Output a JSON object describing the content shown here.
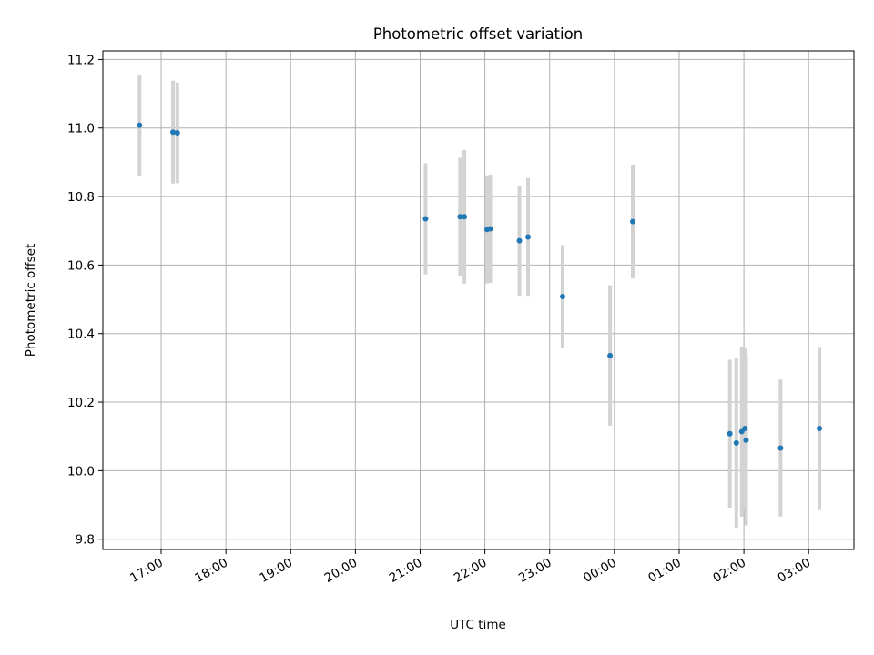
{
  "chart_data": {
    "type": "scatter",
    "title": "Photometric offset variation",
    "xlabel": "UTC time",
    "ylabel": "Photometric offset",
    "grid": true,
    "x_ticks": [
      "17:00",
      "18:00",
      "19:00",
      "20:00",
      "21:00",
      "22:00",
      "23:00",
      "00:00",
      "01:00",
      "02:00",
      "03:00"
    ],
    "x_range_hours": [
      16.1,
      27.7
    ],
    "y_ticks": [
      "9.8",
      "10.0",
      "10.2",
      "10.4",
      "10.6",
      "10.8",
      "11.0",
      "11.2"
    ],
    "ylim": [
      9.77,
      11.225
    ],
    "colors": {
      "points": "#1f77b4",
      "errorbars": "#d3d3d3",
      "grid": "#b0b0b0"
    },
    "series": [
      {
        "name": "",
        "points": [
          {
            "t": "16:40",
            "y": 11.008,
            "err": 0.148
          },
          {
            "t": "17:11",
            "y": 10.988,
            "err": 0.15
          },
          {
            "t": "17:15",
            "y": 10.986,
            "err": 0.147
          },
          {
            "t": "21:05",
            "y": 10.735,
            "err": 0.162
          },
          {
            "t": "21:37",
            "y": 10.741,
            "err": 0.172
          },
          {
            "t": "21:41",
            "y": 10.741,
            "err": 0.195
          },
          {
            "t": "22:02",
            "y": 10.704,
            "err": 0.158
          },
          {
            "t": "22:05",
            "y": 10.706,
            "err": 0.158
          },
          {
            "t": "22:32",
            "y": 10.671,
            "err": 0.16
          },
          {
            "t": "22:40",
            "y": 10.682,
            "err": 0.172
          },
          {
            "t": "23:12",
            "y": 10.508,
            "err": 0.15
          },
          {
            "t": "23:56",
            "y": 10.336,
            "err": 0.205
          },
          {
            "t": "00:17",
            "y": 10.727,
            "err": 0.166
          },
          {
            "t": "01:47",
            "y": 10.108,
            "err": 0.216
          },
          {
            "t": "01:53",
            "y": 10.081,
            "err": 0.248
          },
          {
            "t": "01:58",
            "y": 10.114,
            "err": 0.248
          },
          {
            "t": "02:01",
            "y": 10.123,
            "err": 0.237
          },
          {
            "t": "02:02",
            "y": 10.089,
            "err": 0.249
          },
          {
            "t": "02:34",
            "y": 10.066,
            "err": 0.2
          },
          {
            "t": "03:10",
            "y": 10.123,
            "err": 0.238
          }
        ]
      }
    ]
  }
}
